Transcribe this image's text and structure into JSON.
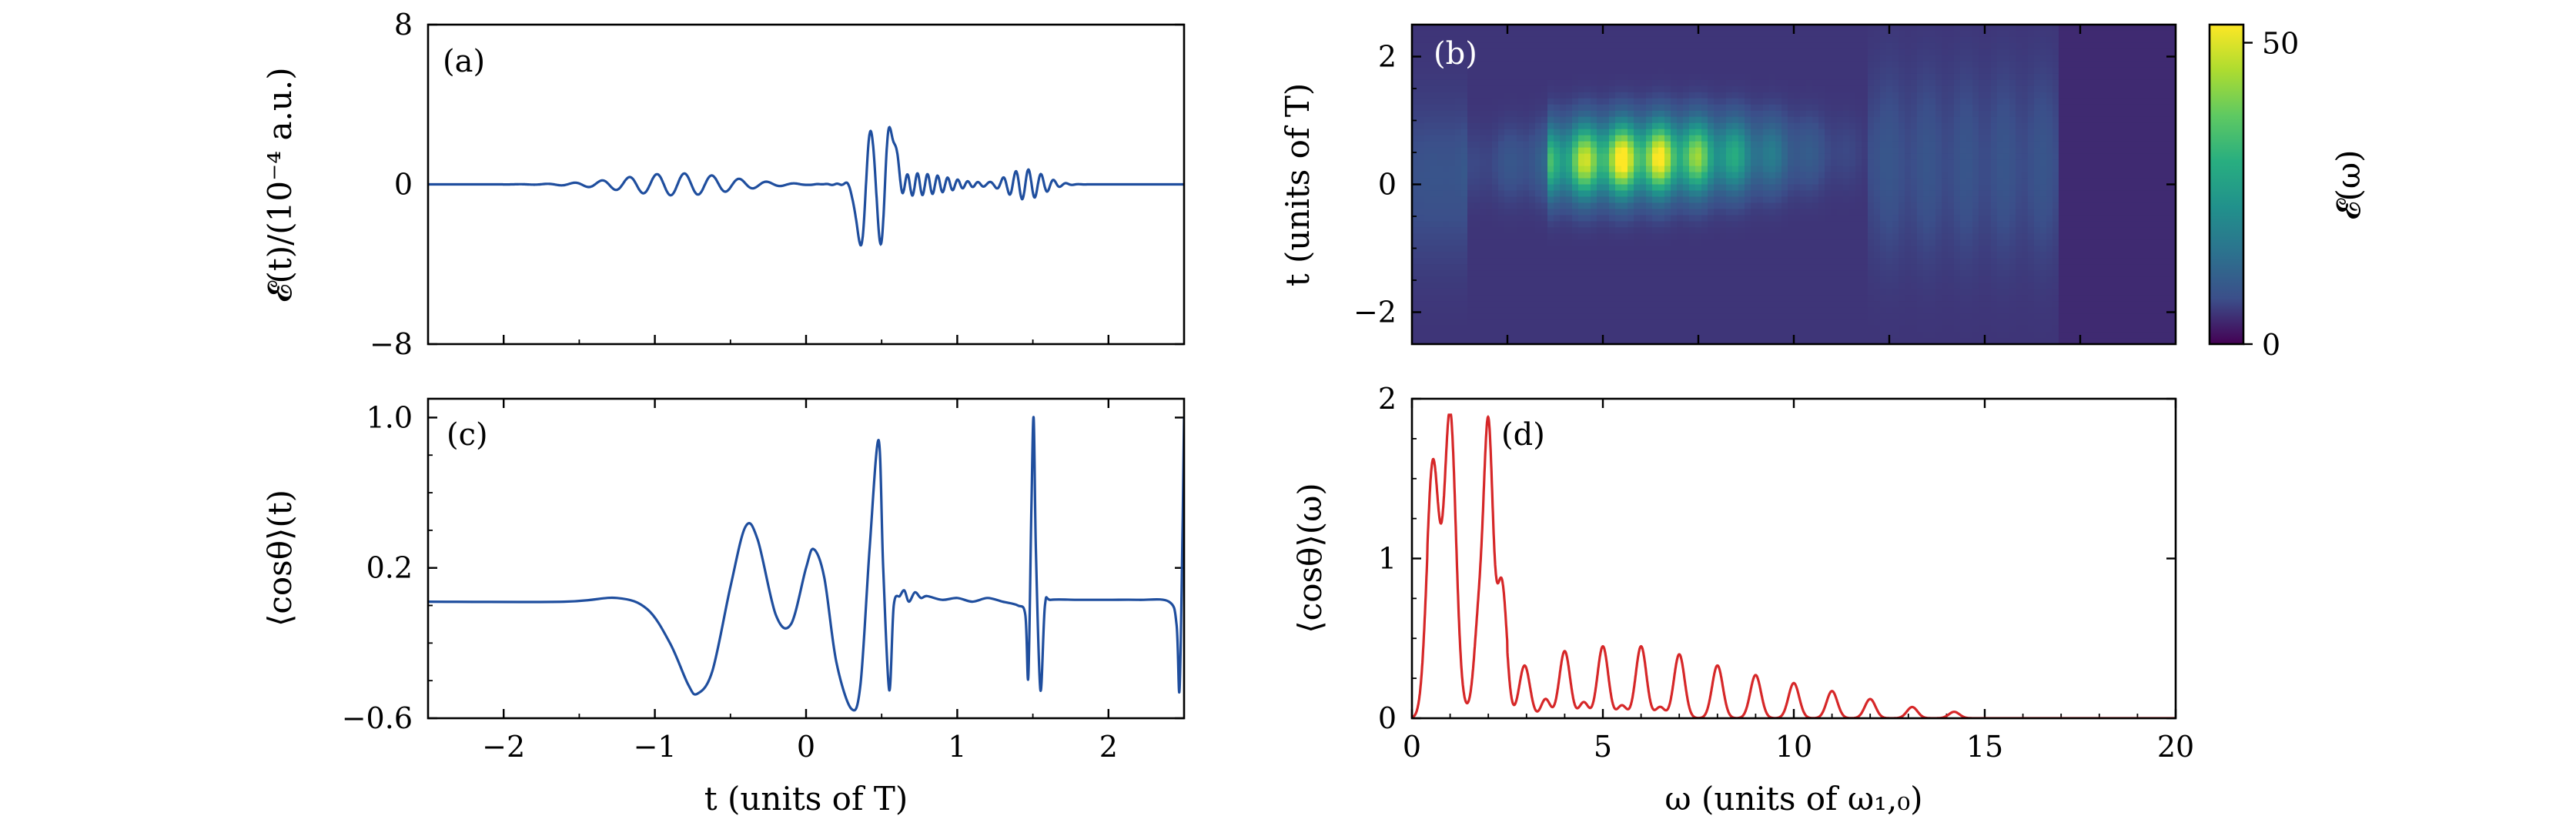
{
  "chart_data": [
    {
      "panel": "a",
      "type": "line",
      "panel_label": "(a)",
      "ylabel": "𝓔(t)/(10⁻⁴ a.u.)",
      "xlabel": "",
      "xlim": [
        -2.5,
        2.5
      ],
      "ylim": [
        -8,
        8
      ],
      "yticks": [
        -8,
        0,
        8
      ],
      "yticklabels": [
        "−8",
        "0",
        "8"
      ],
      "xticks": [
        -2,
        -1,
        0,
        1,
        2
      ],
      "xticklabels": [],
      "line_color": "#1f4e9e",
      "components": [
        {
          "t0": -0.85,
          "sigma": 0.35,
          "amp": 0.55,
          "freq": 5.5
        },
        {
          "t0": 0.46,
          "sigma": 0.06,
          "amp": 5.5,
          "freq": 4.0
        },
        {
          "t0": 0.72,
          "sigma": 0.22,
          "amp": 0.55,
          "freq": 15.0
        },
        {
          "t0": 1.45,
          "sigma": 0.12,
          "amp": 0.75,
          "freq": 12.0
        }
      ]
    },
    {
      "panel": "b",
      "type": "heatmap",
      "panel_label": "(b)",
      "ylabel": "t (units of T)",
      "xlim": [
        0,
        20
      ],
      "ylim": [
        -2.5,
        2.5
      ],
      "yticks": [
        -2,
        0,
        2
      ],
      "yticklabels": [
        "−2",
        "0",
        "2"
      ],
      "colorbar": {
        "label": "𝓔(ω)",
        "range": [
          0,
          53
        ],
        "ticks": [
          0,
          50
        ],
        "ticklabels": [
          "0",
          "50"
        ],
        "colormap": [
          "#440154",
          "#3b4f8a",
          "#2c728e",
          "#21918c",
          "#28ae80",
          "#5ec962",
          "#addc30",
          "#fde725"
        ]
      },
      "bright_region": {
        "omega_range": [
          3.5,
          12.0
        ],
        "t_center": 0.4,
        "peak_omega": 5.8,
        "peak_value": 53
      }
    },
    {
      "panel": "c",
      "type": "line",
      "panel_label": "(c)",
      "ylabel": "⟨cosθ⟩(t)",
      "xlabel": "t (units of T)",
      "xlim": [
        -2.5,
        2.5
      ],
      "ylim": [
        -0.6,
        1.1
      ],
      "yticks": [
        -0.6,
        0.2,
        1.0
      ],
      "yticklabels": [
        "−0.6",
        "0.2",
        "1.0"
      ],
      "xticks": [
        -2,
        -1,
        0,
        1,
        2
      ],
      "xticklabels": [
        "−2",
        "−1",
        "0",
        "1",
        "2"
      ],
      "line_color": "#1f4e9e",
      "baseline": 0.02,
      "points": [
        [
          -2.5,
          0.02
        ],
        [
          -1.6,
          0.02
        ],
        [
          -1.25,
          0.04
        ],
        [
          -1.05,
          -0.02
        ],
        [
          -0.9,
          -0.2
        ],
        [
          -0.78,
          -0.42
        ],
        [
          -0.72,
          -0.47
        ],
        [
          -0.62,
          -0.35
        ],
        [
          -0.5,
          0.1
        ],
        [
          -0.4,
          0.42
        ],
        [
          -0.32,
          0.35
        ],
        [
          -0.2,
          -0.05
        ],
        [
          -0.1,
          -0.1
        ],
        [
          0.0,
          0.2
        ],
        [
          0.05,
          0.3
        ],
        [
          0.12,
          0.15
        ],
        [
          0.2,
          -0.3
        ],
        [
          0.3,
          -0.55
        ],
        [
          0.36,
          -0.42
        ],
        [
          0.42,
          0.3
        ],
        [
          0.48,
          0.88
        ],
        [
          0.51,
          0.2
        ],
        [
          0.55,
          -0.45
        ],
        [
          0.58,
          0.0
        ],
        [
          0.62,
          0.05
        ],
        [
          0.65,
          0.08
        ],
        [
          0.68,
          0.02
        ],
        [
          0.72,
          0.07
        ],
        [
          0.76,
          0.04
        ],
        [
          0.8,
          0.05
        ],
        [
          0.9,
          0.03
        ],
        [
          1.0,
          0.04
        ],
        [
          1.1,
          0.02
        ],
        [
          1.2,
          0.04
        ],
        [
          1.3,
          0.02
        ],
        [
          1.4,
          0.0
        ],
        [
          1.45,
          -0.05
        ],
        [
          1.47,
          -0.38
        ],
        [
          1.49,
          0.5
        ],
        [
          1.505,
          1.0
        ],
        [
          1.52,
          0.3
        ],
        [
          1.55,
          -0.45
        ],
        [
          1.58,
          0.0
        ],
        [
          1.62,
          0.03
        ],
        [
          1.8,
          0.03
        ],
        [
          2.0,
          0.03
        ],
        [
          2.2,
          0.03
        ],
        [
          2.4,
          0.02
        ],
        [
          2.45,
          -0.1
        ],
        [
          2.47,
          -0.45
        ],
        [
          2.49,
          0.4
        ],
        [
          2.5,
          1.0
        ]
      ]
    },
    {
      "panel": "d",
      "type": "line",
      "panel_label": "(d)",
      "ylabel": "⟨cosθ⟩(ω)",
      "xlabel": "ω (units of ω₁,₀)",
      "xlim": [
        0,
        20
      ],
      "ylim": [
        0,
        2
      ],
      "yticks": [
        0,
        1,
        2
      ],
      "yticklabels": [
        "0",
        "1",
        "2"
      ],
      "xticks": [
        0,
        5,
        10,
        15,
        20
      ],
      "xticklabels": [
        "0",
        "5",
        "10",
        "15",
        "20"
      ],
      "line_color": "#d62728",
      "peaks": [
        {
          "omega": 0.55,
          "height": 1.55,
          "width": 0.16
        },
        {
          "omega": 1.0,
          "height": 1.85,
          "width": 0.15
        },
        {
          "omega": 1.75,
          "height": 0.55,
          "width": 0.12
        },
        {
          "omega": 2.0,
          "height": 1.75,
          "width": 0.12
        },
        {
          "omega": 2.35,
          "height": 0.8,
          "width": 0.13
        },
        {
          "omega": 2.95,
          "height": 0.33,
          "width": 0.14
        },
        {
          "omega": 3.5,
          "height": 0.12,
          "width": 0.12
        },
        {
          "omega": 4.0,
          "height": 0.42,
          "width": 0.14
        },
        {
          "omega": 4.5,
          "height": 0.1,
          "width": 0.12
        },
        {
          "omega": 5.0,
          "height": 0.45,
          "width": 0.14
        },
        {
          "omega": 5.5,
          "height": 0.08,
          "width": 0.12
        },
        {
          "omega": 6.0,
          "height": 0.45,
          "width": 0.14
        },
        {
          "omega": 6.5,
          "height": 0.07,
          "width": 0.12
        },
        {
          "omega": 7.0,
          "height": 0.4,
          "width": 0.14
        },
        {
          "omega": 8.0,
          "height": 0.33,
          "width": 0.14
        },
        {
          "omega": 9.0,
          "height": 0.27,
          "width": 0.14
        },
        {
          "omega": 10.0,
          "height": 0.22,
          "width": 0.14
        },
        {
          "omega": 11.0,
          "height": 0.17,
          "width": 0.14
        },
        {
          "omega": 12.0,
          "height": 0.12,
          "width": 0.14
        },
        {
          "omega": 13.1,
          "height": 0.07,
          "width": 0.14
        },
        {
          "omega": 14.2,
          "height": 0.04,
          "width": 0.14
        }
      ]
    }
  ]
}
